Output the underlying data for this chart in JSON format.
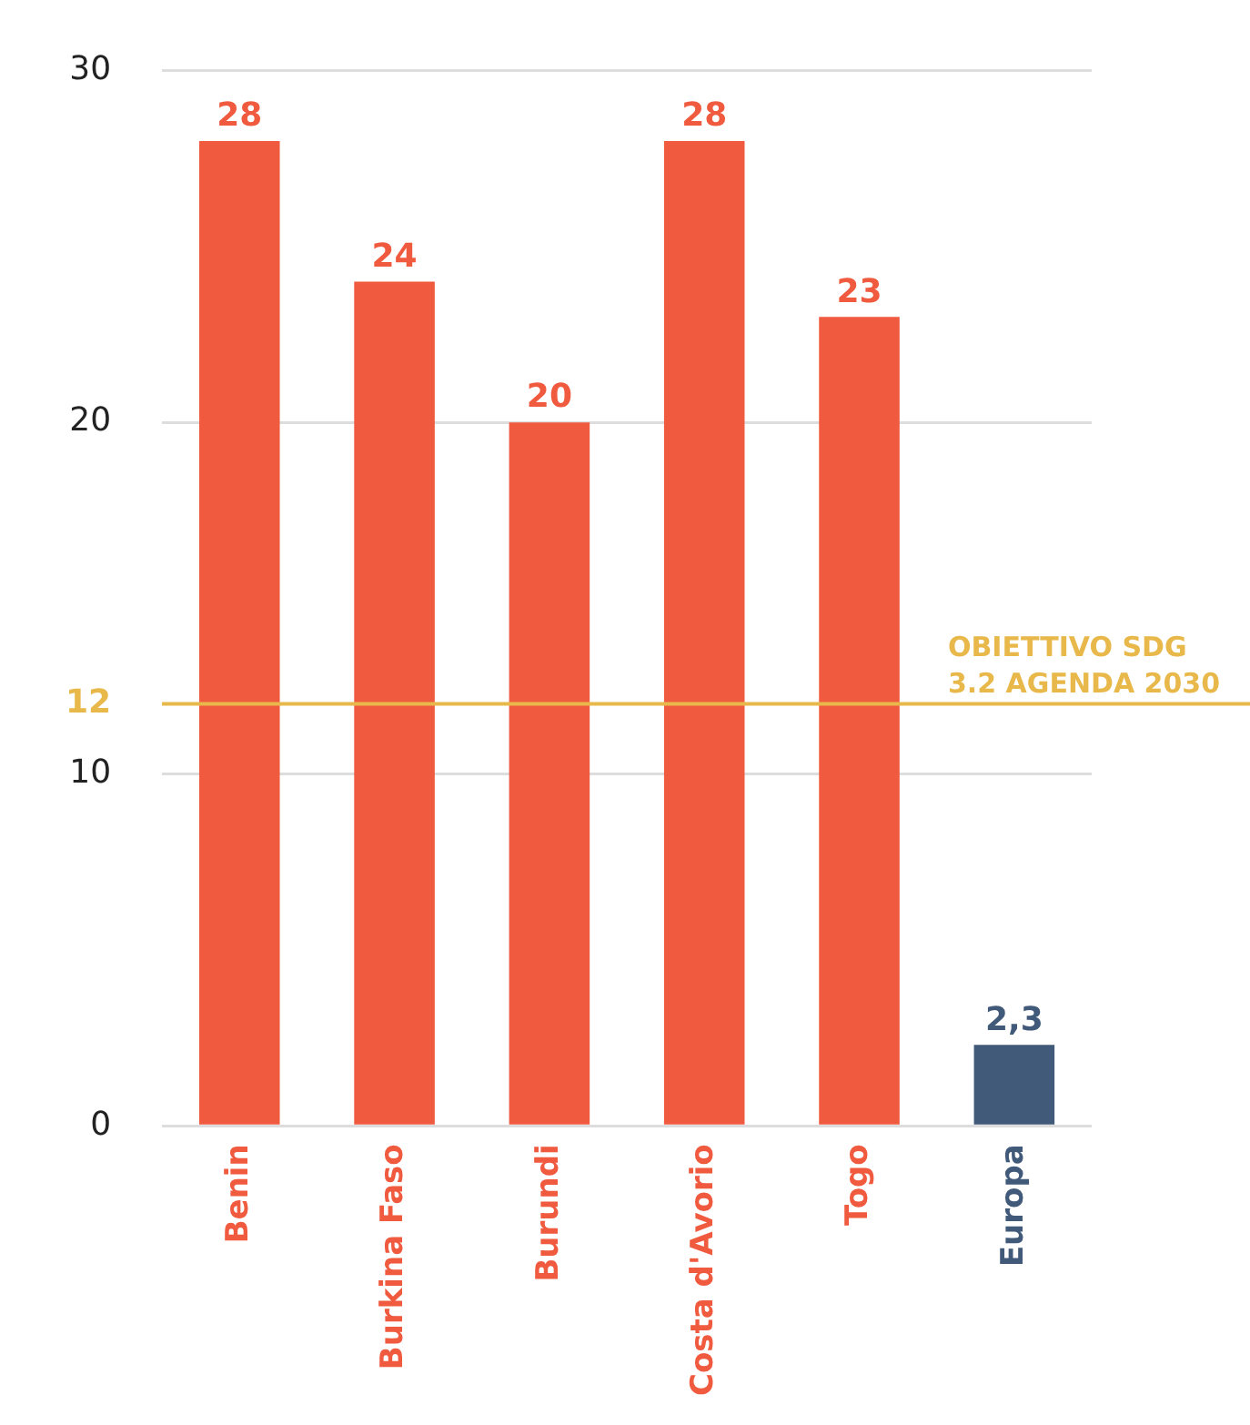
{
  "chart_data": {
    "type": "bar",
    "categories": [
      "Benin",
      "Burkina Faso",
      "Burundi",
      "Costa d'Avorio",
      "Togo",
      "Europa"
    ],
    "values": [
      28,
      24,
      20,
      28,
      23,
      2.3
    ],
    "colors": [
      "#f05a3f",
      "#f05a3f",
      "#f05a3f",
      "#f05a3f",
      "#f05a3f",
      "#415a7a"
    ],
    "value_labels": [
      "28",
      "24",
      "20",
      "28",
      "23",
      "2,3"
    ],
    "ylim": [
      0,
      30
    ],
    "yticks": [
      0,
      10,
      {
        "value": 12,
        "label": "12"
      },
      20,
      30
    ],
    "grid": "y",
    "legend": false,
    "ref_lines": [
      {
        "axis": "y",
        "value": 12,
        "label": "OBIETTIVO SDG\n3.2 AGENDA 2030",
        "color": "#e8b84a"
      }
    ]
  }
}
